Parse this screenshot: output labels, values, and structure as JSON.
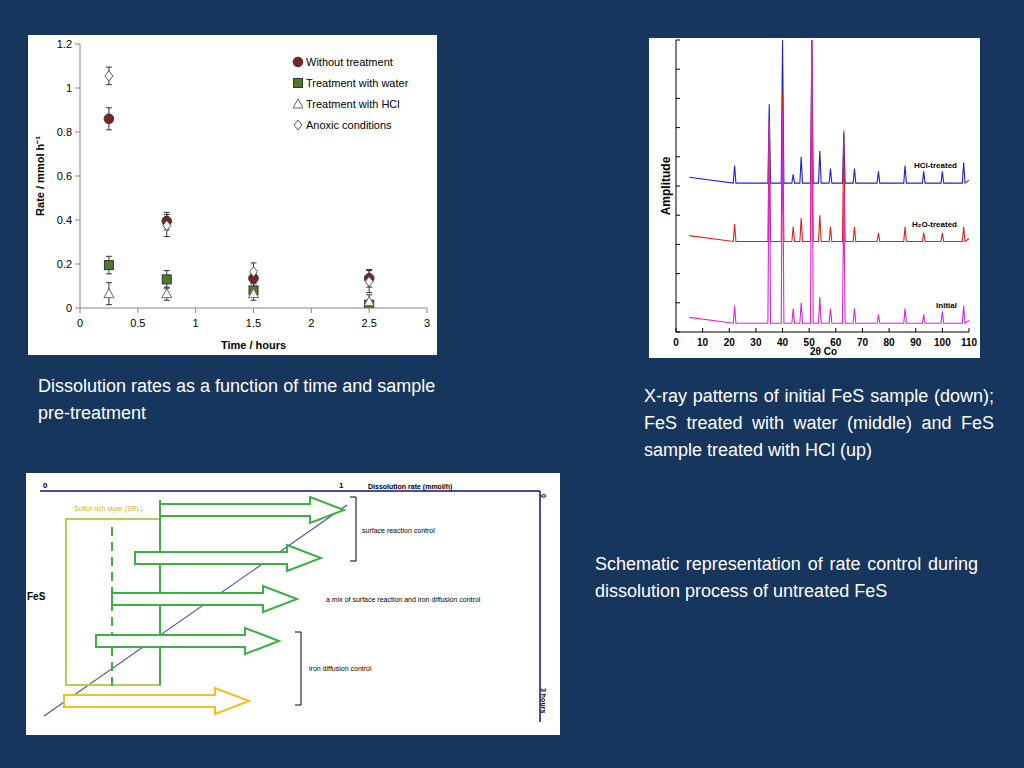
{
  "chart_data": [
    {
      "type": "scatter",
      "caption": "Dissolution rates as a function of time and sample pre-treatment",
      "x_label": "Time / hours",
      "y_label": "Rate / mmol h⁻¹",
      "x": [
        0.25,
        0.75,
        1.5,
        2.5
      ],
      "series": [
        {
          "name": "Without treatment",
          "color": "#7b2324",
          "marker": "circle",
          "values": [
            0.86,
            0.395,
            0.135,
            0.135
          ],
          "error": [
            0.05,
            0.04,
            0.02,
            0.04
          ]
        },
        {
          "name": "Treatment with water",
          "color": "#4e7a2b",
          "marker": "square",
          "values": [
            0.195,
            0.13,
            0.08,
            0.015
          ],
          "error": [
            0.04,
            0.04,
            0.03,
            0.01
          ]
        },
        {
          "name": "Treatment with HCl",
          "color": "#666666",
          "marker": "triangle-open",
          "values": [
            0.065,
            0.065,
            0.065,
            0.03
          ],
          "error": [
            0.05,
            0.03,
            0.03,
            0.03
          ]
        },
        {
          "name": "Anoxic conditions",
          "color": "#555555",
          "marker": "diamond-open",
          "values": [
            1.055,
            0.375,
            0.165,
            0.12
          ],
          "error": [
            0.04,
            0.05,
            0.04,
            0.05
          ]
        }
      ],
      "xlim": [
        0,
        3
      ],
      "xticks": [
        0,
        0.5,
        1,
        1.5,
        2,
        2.5,
        3
      ],
      "ylim": [
        0,
        1.2
      ],
      "yticks": [
        0,
        0.2,
        0.4,
        0.6,
        0.8,
        1,
        1.2
      ],
      "grid": false,
      "legend": "top-right"
    },
    {
      "type": "line",
      "caption": "X-ray patterns of initial FeS sample (down); FeS treated with water (middle) and FeS sample treated with HCl (up)",
      "x_label": "2θ Co",
      "y_label": "Amplitude",
      "x": [
        5,
        21.5,
        22,
        22.5,
        34.5,
        35,
        35.5,
        39.5,
        40,
        40.5,
        43.5,
        44,
        44.5,
        46.5,
        47,
        47.5,
        50.5,
        51,
        51.5,
        53.5,
        54,
        54.5,
        57.5,
        58,
        58.5,
        62.5,
        63,
        63.5,
        66.5,
        67,
        67.5,
        75.5,
        76,
        76.5,
        85.5,
        86,
        86.5,
        92.5,
        93,
        93.5,
        99.5,
        100,
        100.5,
        107.5,
        108,
        108.5,
        110
      ],
      "series": [
        {
          "name": "HCl-treated",
          "color": "#1f1fd8",
          "values": [
            53,
            51,
            57,
            51,
            51,
            78,
            51,
            51,
            100,
            51,
            51,
            54,
            51,
            51,
            60,
            51,
            51,
            100,
            51,
            51,
            62,
            51,
            51,
            56,
            51,
            51,
            68,
            51,
            51,
            56,
            51,
            51,
            55,
            51,
            51,
            57,
            51,
            51,
            55,
            51,
            51,
            55,
            51,
            51,
            58,
            51,
            52
          ]
        },
        {
          "name": "H₂O-treated",
          "color": "#e0201e",
          "values": [
            33,
            31,
            37,
            31,
            31,
            72,
            31,
            31,
            82,
            31,
            31,
            36,
            31,
            31,
            39,
            31,
            31,
            100,
            31,
            31,
            40,
            31,
            31,
            36,
            31,
            31,
            69,
            31,
            31,
            36,
            31,
            31,
            34,
            31,
            31,
            36,
            31,
            31,
            34,
            31,
            31,
            34,
            31,
            31,
            36,
            31,
            32
          ]
        },
        {
          "name": "Initial",
          "color": "#e020e0",
          "values": [
            5,
            3,
            9,
            3,
            3,
            72,
            3,
            3,
            76,
            3,
            3,
            8,
            3,
            3,
            10,
            3,
            3,
            100,
            3,
            3,
            12,
            3,
            3,
            8,
            3,
            3,
            48,
            3,
            3,
            8,
            3,
            3,
            6,
            3,
            3,
            8,
            3,
            3,
            6,
            3,
            3,
            7,
            3,
            3,
            9,
            3,
            4
          ]
        }
      ],
      "xlim": [
        0,
        110
      ],
      "xticks": [
        0,
        10,
        20,
        30,
        40,
        50,
        60,
        70,
        80,
        90,
        100,
        110
      ],
      "ylim": [
        0,
        100
      ],
      "yticks": [
        0,
        10,
        20,
        30,
        40,
        50,
        60,
        70,
        80,
        90,
        100
      ],
      "tick_labels": "x",
      "grid": false
    }
  ],
  "schematic": {
    "caption": "Schematic representation of rate control during dissolution process of untreated FeS",
    "rate_axis": {
      "label": "Dissolution rate (mmol/h)",
      "start": "0",
      "end": "1"
    },
    "time_axis": {
      "start": "0",
      "end": "3 hours"
    },
    "material": "FeS",
    "layer": "Sulfur rich layer (SRL)",
    "regions": [
      "surface reaction control",
      "a mix of surface reaction and iron diffusion control",
      "iron diffusion control"
    ]
  }
}
